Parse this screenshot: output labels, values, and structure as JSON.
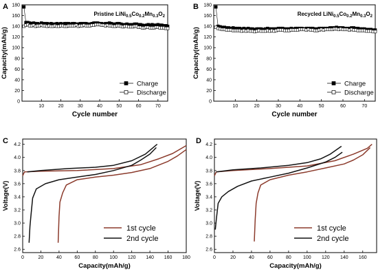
{
  "chart_data": [
    {
      "panel": "A",
      "type": "scatter",
      "title_main": "Pristine LiNi",
      "title_sub1": "0.5",
      "title_mid1": "Co",
      "title_sub2": "0.2",
      "title_mid2": "Mn",
      "title_sub3": "0.3",
      "title_end": "O",
      "title_sub4": "2",
      "xlabel": "Cycle number",
      "ylabel": "Capacity(mAh/g)",
      "xlim": [
        0,
        75
      ],
      "ylim": [
        0,
        180
      ],
      "xticks": [
        10,
        20,
        30,
        40,
        50,
        60,
        70
      ],
      "yticks": [
        0,
        20,
        40,
        60,
        80,
        100,
        120,
        140,
        160,
        180
      ],
      "legend_position": "bottom-right",
      "legend": [
        "Charge",
        "Discharge"
      ],
      "x": [
        1,
        2,
        3,
        4,
        5,
        6,
        7,
        8,
        9,
        10,
        11,
        12,
        13,
        14,
        15,
        16,
        17,
        18,
        19,
        20,
        21,
        22,
        23,
        24,
        25,
        26,
        27,
        28,
        29,
        30,
        31,
        32,
        33,
        34,
        35,
        36,
        37,
        38,
        39,
        40,
        41,
        42,
        43,
        44,
        45,
        46,
        47,
        48,
        49,
        50,
        51,
        52,
        53,
        54,
        55,
        56,
        57,
        58,
        59,
        60,
        61,
        62,
        63,
        64,
        65,
        66,
        67,
        68,
        69,
        70,
        71,
        72,
        73,
        74,
        75
      ],
      "series": [
        {
          "name": "Charge",
          "marker": "filled-square",
          "values": [
            176,
            147,
            147,
            146,
            145,
            146,
            145,
            145,
            144,
            146,
            145,
            145,
            145,
            144,
            145,
            144,
            144,
            145,
            144,
            145,
            144,
            145,
            145,
            145,
            144,
            145,
            145,
            144,
            144,
            145,
            145,
            145,
            145,
            144,
            144,
            145,
            146,
            146,
            146,
            145,
            145,
            144,
            145,
            145,
            146,
            145,
            144,
            144,
            145,
            145,
            144,
            143,
            143,
            144,
            143,
            143,
            143,
            144,
            144,
            143,
            143,
            142,
            141,
            142,
            143,
            142,
            143,
            142,
            142,
            143,
            142,
            142,
            141,
            141,
            140
          ]
        },
        {
          "name": "Discharge",
          "marker": "open-square",
          "values": [
            140,
            142,
            143,
            141,
            141,
            142,
            140,
            141,
            141,
            142,
            141,
            141,
            140,
            141,
            140,
            140,
            141,
            140,
            140,
            141,
            141,
            140,
            140,
            141,
            141,
            141,
            141,
            142,
            140,
            141,
            141,
            142,
            141,
            141,
            141,
            142,
            142,
            143,
            143,
            143,
            142,
            142,
            141,
            142,
            141,
            141,
            140,
            140,
            141,
            141,
            140,
            139,
            140,
            140,
            139,
            139,
            139,
            140,
            140,
            138,
            138,
            137,
            137,
            138,
            138,
            137,
            137,
            137,
            138,
            138,
            137,
            137,
            137,
            136,
            136
          ]
        }
      ]
    },
    {
      "panel": "B",
      "type": "scatter",
      "title_main": "Recycled LiNi",
      "title_sub1": "0.5",
      "title_mid1": "Co",
      "title_sub2": "0.2",
      "title_mid2": "Mn",
      "title_sub3": "0.3",
      "title_end": "O",
      "title_sub4": "2",
      "xlabel": "Cycle number",
      "ylabel": "Capacity(mAh/g)",
      "xlim": [
        0,
        75
      ],
      "ylim": [
        0,
        180
      ],
      "xticks": [
        10,
        20,
        30,
        40,
        50,
        60,
        70
      ],
      "yticks": [
        0,
        20,
        40,
        60,
        80,
        100,
        120,
        140,
        160,
        180
      ],
      "legend_position": "bottom-right",
      "legend": [
        "Charge",
        "Discharge"
      ],
      "x": [
        1,
        2,
        3,
        4,
        5,
        6,
        7,
        8,
        9,
        10,
        11,
        12,
        13,
        14,
        15,
        16,
        17,
        18,
        19,
        20,
        21,
        22,
        23,
        24,
        25,
        26,
        27,
        28,
        29,
        30,
        31,
        32,
        33,
        34,
        35,
        36,
        37,
        38,
        39,
        40,
        41,
        42,
        43,
        44,
        45,
        46,
        47,
        48,
        49,
        50,
        51,
        52,
        53,
        54,
        55,
        56,
        57,
        58,
        59,
        60,
        61,
        62,
        63,
        64,
        65,
        66,
        67,
        68,
        69,
        70,
        71,
        72,
        73,
        74,
        75
      ],
      "series": [
        {
          "name": "Charge",
          "marker": "filled-square",
          "values": [
            176,
            140,
            139,
            138,
            138,
            137,
            137,
            136,
            137,
            136,
            136,
            136,
            135,
            136,
            135,
            136,
            135,
            135,
            134,
            135,
            135,
            135,
            134,
            135,
            136,
            135,
            135,
            135,
            135,
            136,
            136,
            136,
            135,
            135,
            135,
            136,
            135,
            136,
            136,
            136,
            136,
            135,
            136,
            136,
            136,
            136,
            135,
            135,
            136,
            136,
            136,
            136,
            136,
            137,
            137,
            137,
            138,
            137,
            137,
            137,
            136,
            136,
            136,
            137,
            137,
            136,
            136,
            135,
            135,
            135,
            134,
            134,
            134,
            133,
            133
          ]
        },
        {
          "name": "Discharge",
          "marker": "open-square",
          "values": [
            138,
            136,
            135,
            134,
            134,
            133,
            133,
            133,
            132,
            132,
            132,
            132,
            131,
            132,
            131,
            132,
            131,
            131,
            130,
            131,
            132,
            131,
            131,
            131,
            132,
            131,
            132,
            131,
            132,
            133,
            133,
            133,
            132,
            132,
            132,
            133,
            133,
            133,
            133,
            134,
            134,
            134,
            133,
            134,
            133,
            133,
            132,
            132,
            133,
            134,
            133,
            134,
            134,
            134,
            134,
            135,
            135,
            134,
            135,
            134,
            134,
            134,
            133,
            134,
            133,
            133,
            132,
            132,
            132,
            132,
            131,
            131,
            131,
            130,
            130
          ]
        }
      ]
    },
    {
      "panel": "C",
      "type": "line",
      "xlabel": "Capacity(mAh/g)",
      "ylabel": "Voltage(V)",
      "xlim": [
        0,
        180
      ],
      "ylim": [
        2.55,
        4.28
      ],
      "xticks": [
        0,
        20,
        40,
        60,
        80,
        100,
        120,
        140,
        160,
        180
      ],
      "yticks": [
        2.6,
        2.8,
        3.0,
        3.2,
        3.4,
        3.6,
        3.8,
        4.0,
        4.2
      ],
      "legend_position": "bottom-right",
      "series": [
        {
          "name": "1st cycle",
          "color": "#8b3a2b",
          "segments": [
            [
              [
                0,
                3.72
              ],
              [
                2,
                3.78
              ],
              [
                20,
                3.79
              ],
              [
                60,
                3.8
              ],
              [
                100,
                3.83
              ],
              [
                130,
                3.89
              ],
              [
                150,
                3.98
              ],
              [
                165,
                4.06
              ],
              [
                180,
                4.18
              ]
            ],
            [
              [
                180,
                4.12
              ],
              [
                170,
                4.02
              ],
              [
                160,
                3.94
              ],
              [
                140,
                3.83
              ],
              [
                120,
                3.77
              ],
              [
                100,
                3.73
              ],
              [
                80,
                3.7
              ],
              [
                60,
                3.66
              ],
              [
                48,
                3.58
              ],
              [
                44,
                3.46
              ],
              [
                41,
                3.32
              ],
              [
                40,
                3.1
              ],
              [
                39,
                2.7
              ]
            ]
          ]
        },
        {
          "name": "2nd cycle",
          "color": "#111111",
          "segments": [
            [
              [
                5,
                3.78
              ],
              [
                20,
                3.8
              ],
              [
                50,
                3.83
              ],
              [
                80,
                3.85
              ],
              [
                100,
                3.88
              ],
              [
                120,
                3.95
              ],
              [
                135,
                4.05
              ],
              [
                148,
                4.2
              ]
            ],
            [
              [
                147,
                4.15
              ],
              [
                140,
                4.05
              ],
              [
                130,
                3.96
              ],
              [
                120,
                3.88
              ],
              [
                100,
                3.8
              ],
              [
                80,
                3.74
              ],
              [
                60,
                3.7
              ],
              [
                40,
                3.66
              ],
              [
                25,
                3.6
              ],
              [
                15,
                3.52
              ],
              [
                11,
                3.38
              ],
              [
                9,
                3.1
              ],
              [
                8,
                2.95
              ],
              [
                7,
                2.7
              ]
            ]
          ]
        }
      ]
    },
    {
      "panel": "D",
      "type": "line",
      "xlabel": "Capacity(mAh/g)",
      "ylabel": "Voltage(V)",
      "xlim": [
        0,
        175
      ],
      "ylim": [
        2.55,
        4.28
      ],
      "xticks": [
        0,
        20,
        40,
        60,
        80,
        100,
        120,
        140,
        160
      ],
      "yticks": [
        2.6,
        2.8,
        3.0,
        3.2,
        3.4,
        3.6,
        3.8,
        4.0,
        4.2
      ],
      "legend_position": "bottom-right",
      "series": [
        {
          "name": "1st cycle",
          "color": "#8b3a2b",
          "segments": [
            [
              [
                0,
                3.72
              ],
              [
                2,
                3.78
              ],
              [
                20,
                3.8
              ],
              [
                60,
                3.83
              ],
              [
                100,
                3.87
              ],
              [
                130,
                3.95
              ],
              [
                150,
                4.05
              ],
              [
                165,
                4.14
              ],
              [
                170,
                4.2
              ]
            ],
            [
              [
                168,
                4.15
              ],
              [
                160,
                4.04
              ],
              [
                150,
                3.96
              ],
              [
                140,
                3.9
              ],
              [
                120,
                3.84
              ],
              [
                100,
                3.78
              ],
              [
                80,
                3.73
              ],
              [
                60,
                3.66
              ],
              [
                50,
                3.58
              ],
              [
                47,
                3.46
              ],
              [
                45,
                3.3
              ],
              [
                44,
                3.05
              ],
              [
                43,
                2.72
              ]
            ]
          ]
        },
        {
          "name": "2nd cycle",
          "color": "#111111",
          "segments": [
            [
              [
                2,
                3.78
              ],
              [
                20,
                3.81
              ],
              [
                50,
                3.84
              ],
              [
                80,
                3.88
              ],
              [
                100,
                3.92
              ],
              [
                115,
                3.98
              ],
              [
                125,
                4.05
              ],
              [
                137,
                4.17
              ]
            ],
            [
              [
                138,
                4.08
              ],
              [
                130,
                4.0
              ],
              [
                120,
                3.93
              ],
              [
                100,
                3.84
              ],
              [
                80,
                3.76
              ],
              [
                60,
                3.7
              ],
              [
                40,
                3.64
              ],
              [
                25,
                3.56
              ],
              [
                15,
                3.48
              ],
              [
                8,
                3.4
              ],
              [
                4,
                3.3
              ],
              [
                2,
                3.05
              ],
              [
                1,
                2.9
              ]
            ]
          ]
        }
      ]
    }
  ]
}
